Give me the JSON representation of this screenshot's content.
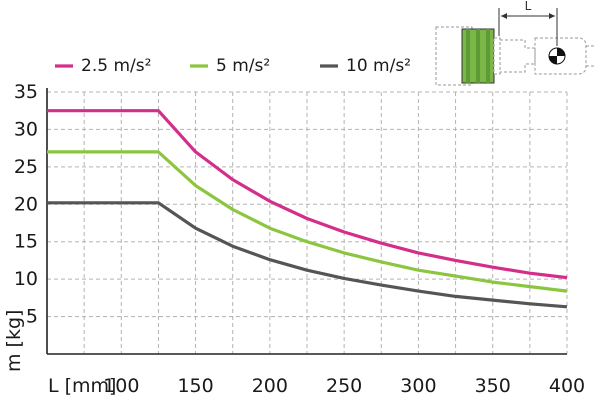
{
  "chart_data": {
    "type": "line",
    "title": "",
    "xlabel": "L [mm]",
    "ylabel": "m [kg]",
    "xlim": [
      50,
      400
    ],
    "ylim": [
      0,
      35
    ],
    "grid": true,
    "legend_position": "top-left",
    "x_ticks": [
      100,
      150,
      200,
      250,
      300,
      350,
      400
    ],
    "y_ticks": [
      5,
      10,
      15,
      20,
      25,
      30,
      35
    ],
    "series": [
      {
        "name": "2.5 m/s²",
        "color": "#d42d8a",
        "points": [
          [
            50,
            32.5
          ],
          [
            125,
            32.5
          ],
          [
            150,
            27
          ],
          [
            175,
            23.3
          ],
          [
            200,
            20.4
          ],
          [
            225,
            18.1
          ],
          [
            250,
            16.3
          ],
          [
            275,
            14.8
          ],
          [
            300,
            13.5
          ],
          [
            325,
            12.5
          ],
          [
            350,
            11.6
          ],
          [
            375,
            10.8
          ],
          [
            400,
            10.2
          ]
        ]
      },
      {
        "name": "5 m/s²",
        "color": "#8cc63f",
        "points": [
          [
            50,
            27
          ],
          [
            125,
            27
          ],
          [
            150,
            22.5
          ],
          [
            175,
            19.3
          ],
          [
            200,
            16.8
          ],
          [
            225,
            15
          ],
          [
            250,
            13.5
          ],
          [
            275,
            12.3
          ],
          [
            300,
            11.2
          ],
          [
            325,
            10.4
          ],
          [
            350,
            9.6
          ],
          [
            375,
            9
          ],
          [
            400,
            8.4
          ]
        ]
      },
      {
        "name": "10 m/s²",
        "color": "#555555",
        "points": [
          [
            50,
            20.2
          ],
          [
            125,
            20.2
          ],
          [
            150,
            16.8
          ],
          [
            175,
            14.4
          ],
          [
            200,
            12.6
          ],
          [
            225,
            11.2
          ],
          [
            250,
            10.1
          ],
          [
            275,
            9.2
          ],
          [
            300,
            8.4
          ],
          [
            325,
            7.7
          ],
          [
            350,
            7.2
          ],
          [
            375,
            6.7
          ],
          [
            400,
            6.3
          ]
        ]
      }
    ]
  },
  "diagram": {
    "dimension_label": "L"
  }
}
